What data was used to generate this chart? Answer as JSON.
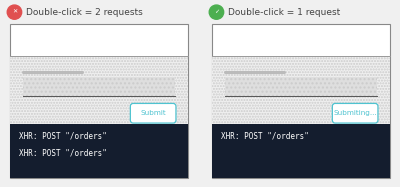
{
  "bg_color": "#f0f0f0",
  "panel_bg": "#ffffff",
  "console_bg": "#141d2e",
  "console_text_color": "#ffffff",
  "divider_color": "#aaaaaa",
  "border_color": "#888888",
  "left": {
    "title": "Double-click = 2 requests",
    "icon_color": "#e05050",
    "icon_symbol": "✕",
    "button_label": "Submit",
    "button_border": "#4fc3d0",
    "button_text_color": "#4fc3d0",
    "console_lines": [
      "XHR: POST \"/orders\"",
      "XHR: POST \"/orders\""
    ]
  },
  "right": {
    "title": "Double-click = 1 request",
    "icon_color": "#4caf50",
    "icon_symbol": "✓",
    "button_label": "Submiting...",
    "button_border": "#4fc3d0",
    "button_text_color": "#4fc3d0",
    "console_lines": [
      "XHR: POST \"/orders\""
    ]
  },
  "title_fontsize": 6.5,
  "console_fontsize": 5.5,
  "button_fontsize": 5.2,
  "label_line_color": "#bbbbbb",
  "field_hatch_color": "#cccccc",
  "field_bg": "#e0e0e0",
  "form_dot_color": "#dddddd"
}
